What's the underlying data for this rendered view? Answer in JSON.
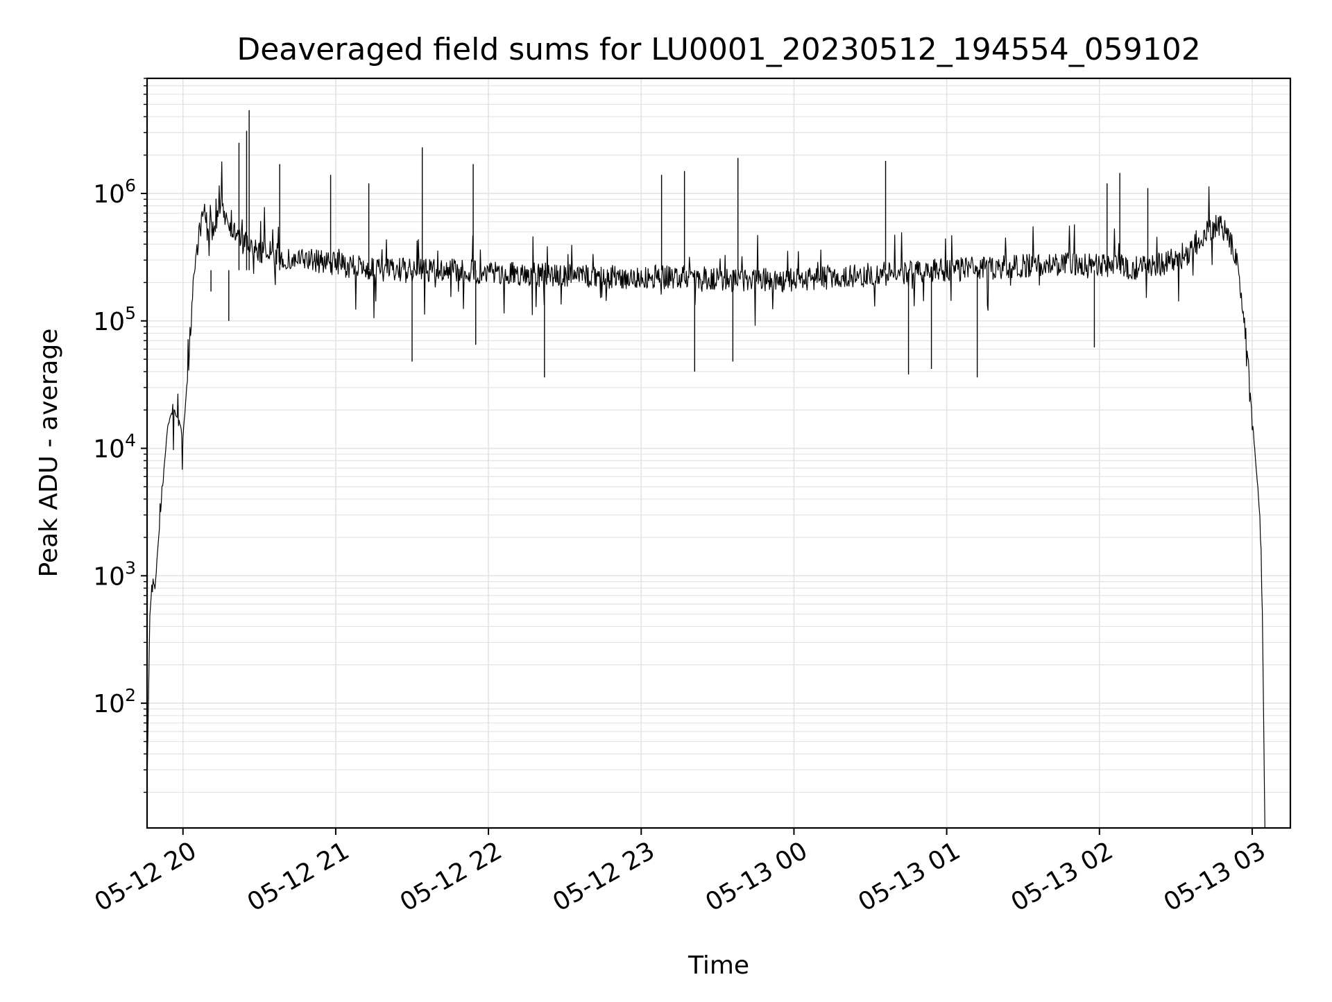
{
  "chart_data": {
    "type": "line",
    "title": "Deaveraged field sums for LU0001_20230512_194554_059102",
    "xlabel": "Time",
    "ylabel": "Peak ADU - average",
    "x_scale": "time",
    "y_scale": "log",
    "xlim": [
      "2023-05-12T19:45:54",
      "2023-05-13T03:15:00"
    ],
    "ylim": [
      10.5,
      8000000
    ],
    "grid": true,
    "legend": "none",
    "line_color": "#000000",
    "grid_color": "#e3e3e3",
    "x_ticks": [
      {
        "value": "2023-05-12T20:00:00",
        "label": "05-12 20"
      },
      {
        "value": "2023-05-12T21:00:00",
        "label": "05-12 21"
      },
      {
        "value": "2023-05-12T22:00:00",
        "label": "05-12 22"
      },
      {
        "value": "2023-05-12T23:00:00",
        "label": "05-12 23"
      },
      {
        "value": "2023-05-13T00:00:00",
        "label": "05-13 00"
      },
      {
        "value": "2023-05-13T01:00:00",
        "label": "05-13 01"
      },
      {
        "value": "2023-05-13T02:00:00",
        "label": "05-13 02"
      },
      {
        "value": "2023-05-13T03:00:00",
        "label": "05-13 03"
      }
    ],
    "y_ticks": [
      {
        "value": 100,
        "base": "10",
        "exp": "2"
      },
      {
        "value": 1000,
        "base": "10",
        "exp": "3"
      },
      {
        "value": 10000,
        "base": "10",
        "exp": "4"
      },
      {
        "value": 100000,
        "base": "10",
        "exp": "5"
      },
      {
        "value": 1000000,
        "base": "10",
        "exp": "6"
      }
    ],
    "series": [
      {
        "x": [
          "2023-05-12T19:46:00",
          "2023-05-12T19:47:00",
          "2023-05-12T19:48:00",
          "2023-05-12T19:49:00",
          "2023-05-12T19:50:00",
          "2023-05-12T19:52:00",
          "2023-05-12T19:54:00",
          "2023-05-12T19:56:00",
          "2023-05-12T19:58:00",
          "2023-05-12T20:00:00",
          "2023-05-12T20:02:00",
          "2023-05-12T20:04:00",
          "2023-05-12T20:06:00",
          "2023-05-12T20:08:00",
          "2023-05-12T20:10:00",
          "2023-05-12T20:12:00",
          "2023-05-12T20:15:00",
          "2023-05-12T20:20:00",
          "2023-05-12T20:25:00",
          "2023-05-12T20:30:00",
          "2023-05-12T20:35:00",
          "2023-05-12T20:40:00",
          "2023-05-12T20:50:00",
          "2023-05-12T21:00:00",
          "2023-05-12T21:15:00",
          "2023-05-12T21:30:00",
          "2023-05-12T21:45:00",
          "2023-05-12T22:00:00",
          "2023-05-12T22:15:00",
          "2023-05-12T22:30:00",
          "2023-05-12T22:45:00",
          "2023-05-12T23:00:00",
          "2023-05-12T23:15:00",
          "2023-05-12T23:30:00",
          "2023-05-12T23:45:00",
          "2023-05-13T00:00:00",
          "2023-05-13T00:15:00",
          "2023-05-13T00:30:00",
          "2023-05-13T00:45:00",
          "2023-05-13T01:00:00",
          "2023-05-13T01:15:00",
          "2023-05-13T01:30:00",
          "2023-05-13T01:45:00",
          "2023-05-13T02:00:00",
          "2023-05-13T02:15:00",
          "2023-05-13T02:25:00",
          "2023-05-13T02:35:00",
          "2023-05-13T02:40:00",
          "2023-05-13T02:45:00",
          "2023-05-13T02:48:00",
          "2023-05-13T02:51:00",
          "2023-05-13T02:54:00",
          "2023-05-13T02:57:00",
          "2023-05-13T02:59:00",
          "2023-05-13T03:01:00",
          "2023-05-13T03:03:00",
          "2023-05-13T03:04:00",
          "2023-05-13T03:05:00"
        ],
        "y": [
          30,
          500,
          1000,
          800,
          1500,
          5000,
          15000,
          20000,
          18000,
          12000,
          40000,
          200000,
          450000,
          700000,
          600000,
          500000,
          800000,
          500000,
          400000,
          350000,
          350000,
          300000,
          300000,
          280000,
          250000,
          250000,
          250000,
          240000,
          230000,
          230000,
          220000,
          220000,
          220000,
          210000,
          210000,
          210000,
          220000,
          230000,
          240000,
          250000,
          260000,
          270000,
          280000,
          270000,
          260000,
          280000,
          350000,
          450000,
          550000,
          550000,
          450000,
          300000,
          100000,
          30000,
          10000,
          3000,
          500,
          10
        ]
      }
    ],
    "spikes": [
      {
        "x": "2023-05-12T20:26:00",
        "y": 4500000
      },
      {
        "x": "2023-05-12T20:25:00",
        "y": 3100000
      },
      {
        "x": "2023-05-12T20:22:00",
        "y": 2500000
      },
      {
        "x": "2023-05-12T20:38:00",
        "y": 1700000
      },
      {
        "x": "2023-05-12T20:58:00",
        "y": 1400000
      },
      {
        "x": "2023-05-12T21:13:00",
        "y": 1200000
      },
      {
        "x": "2023-05-12T21:34:00",
        "y": 2300000
      },
      {
        "x": "2023-05-12T21:54:00",
        "y": 1700000
      },
      {
        "x": "2023-05-12T23:08:00",
        "y": 1400000
      },
      {
        "x": "2023-05-12T23:17:00",
        "y": 1500000
      },
      {
        "x": "2023-05-12T23:38:00",
        "y": 1900000
      },
      {
        "x": "2023-05-13T00:36:00",
        "y": 1800000
      },
      {
        "x": "2023-05-13T02:03:00",
        "y": 1200000
      },
      {
        "x": "2023-05-13T02:08:00",
        "y": 1450000
      },
      {
        "x": "2023-05-13T02:19:00",
        "y": 1100000
      },
      {
        "x": "2023-05-12T20:11:00",
        "y": 170000
      },
      {
        "x": "2023-05-12T20:18:00",
        "y": 100000
      },
      {
        "x": "2023-05-12T21:30:00",
        "y": 48000
      },
      {
        "x": "2023-05-12T21:55:00",
        "y": 65000
      },
      {
        "x": "2023-05-12T22:22:00",
        "y": 36000
      },
      {
        "x": "2023-05-12T23:21:00",
        "y": 40000
      },
      {
        "x": "2023-05-12T23:36:00",
        "y": 48000
      },
      {
        "x": "2023-05-13T00:45:00",
        "y": 38000
      },
      {
        "x": "2023-05-13T00:54:00",
        "y": 42000
      },
      {
        "x": "2023-05-13T01:12:00",
        "y": 36000
      },
      {
        "x": "2023-05-13T01:58:00",
        "y": 62000
      }
    ]
  }
}
